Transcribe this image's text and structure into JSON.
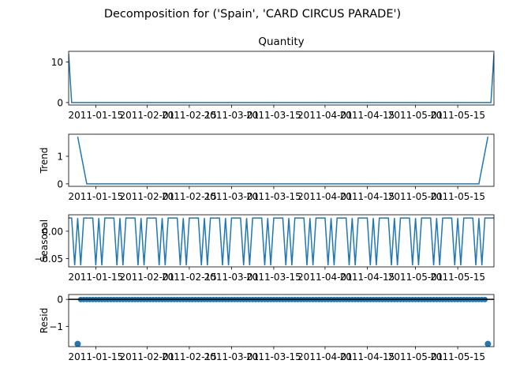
{
  "figure": {
    "suptitle": "Decomposition for ('Spain', 'CARD CIRCUS PARADE')"
  },
  "chart_data": [
    {
      "type": "line",
      "title": "Quantity",
      "ylabel": "",
      "x_range": [
        "2011-01-06",
        "2011-05-27"
      ],
      "ylim": [
        -0.6,
        12.6
      ],
      "yticks": [
        0,
        10
      ],
      "xticks": [
        "2011-01-15",
        "2011-02-01",
        "2011-02-15",
        "2011-03-01",
        "2011-03-15",
        "2011-04-01",
        "2011-04-15",
        "2011-05-01",
        "2011-05-15"
      ],
      "color": "#1f77b4",
      "points": [
        {
          "x": "2011-01-06",
          "y": 12
        },
        {
          "x": "2011-01-07",
          "y": 0
        },
        {
          "x": "2011-05-26",
          "y": 0
        },
        {
          "x": "2011-05-27",
          "y": 12
        }
      ]
    },
    {
      "type": "line",
      "title": "",
      "ylabel": "Trend",
      "x_range": [
        "2011-01-06",
        "2011-05-27"
      ],
      "ylim": [
        -0.09,
        1.8
      ],
      "yticks": [
        0,
        1
      ],
      "xticks": [
        "2011-01-15",
        "2011-02-01",
        "2011-02-15",
        "2011-03-01",
        "2011-03-15",
        "2011-04-01",
        "2011-04-15",
        "2011-05-01",
        "2011-05-15"
      ],
      "color": "#1f77b4",
      "points": [
        {
          "x": "2011-01-09",
          "y": 1.71
        },
        {
          "x": "2011-01-12",
          "y": 0
        },
        {
          "x": "2011-05-22",
          "y": 0
        },
        {
          "x": "2011-05-25",
          "y": 1.71
        }
      ]
    },
    {
      "type": "line",
      "title": "",
      "ylabel": "Seasonal",
      "x_range": [
        "2011-01-06",
        "2011-05-27"
      ],
      "ylim": [
        -0.065,
        0.03
      ],
      "yticks": [
        0.0,
        -0.05
      ],
      "ytick_labels": [
        "0.00",
        "−0.05"
      ],
      "xticks": [
        "2011-01-15",
        "2011-02-01",
        "2011-02-15",
        "2011-03-01",
        "2011-03-15",
        "2011-04-01",
        "2011-04-15",
        "2011-05-01",
        "2011-05-15"
      ],
      "color": "#1f77b4",
      "period_days": 7,
      "weekly_pattern": [
        0.024,
        0.024,
        -0.062,
        0.024,
        -0.062,
        0.024,
        0.024
      ]
    },
    {
      "type": "scatter",
      "title": "",
      "ylabel": "Resid",
      "x_range": [
        "2011-01-06",
        "2011-05-27"
      ],
      "ylim": [
        -1.75,
        0.18
      ],
      "yticks": [
        0,
        -1
      ],
      "ytick_labels": [
        "0",
        "−1"
      ],
      "xticks": [
        "2011-01-15",
        "2011-02-01",
        "2011-02-15",
        "2011-03-01",
        "2011-03-15",
        "2011-04-01",
        "2011-04-15",
        "2011-05-01",
        "2011-05-15"
      ],
      "color": "#1f77b4",
      "baseline": 0,
      "resid_dense_range": [
        "2011-01-10",
        "2011-05-24"
      ],
      "resid_dense_value": -0.005,
      "outliers": [
        {
          "x": "2011-01-09",
          "y": -1.65
        },
        {
          "x": "2011-05-25",
          "y": -1.65
        }
      ]
    }
  ]
}
